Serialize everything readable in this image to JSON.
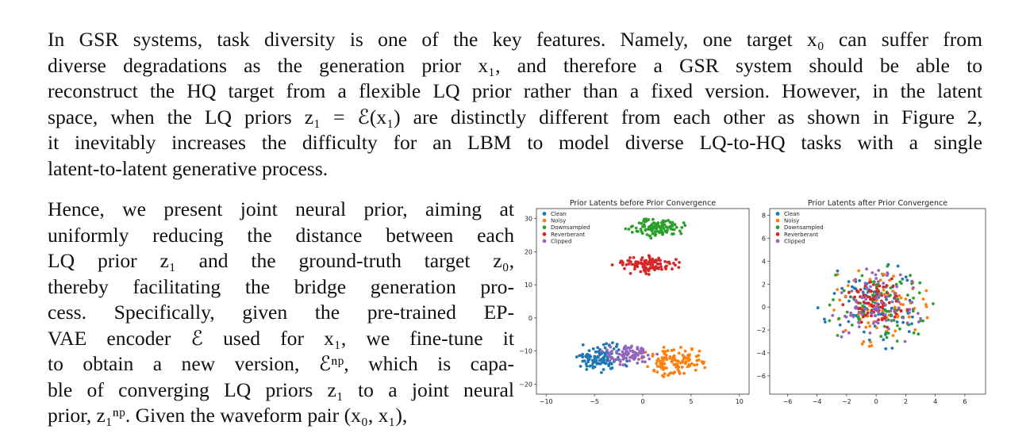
{
  "paragraph1": {
    "lines": [
      "In GSR systems, task diversity is one of the key features. Namely, one target x₀ can suffer from",
      "diverse degradations as the generation prior x₁, and therefore a GSR system should be able to",
      "reconstruct the HQ target from a flexible LQ prior rather than a fixed version. However, in the latent",
      "space, when the LQ priors z₁ = ℰ(x₁) are distinctly different from each other as shown in Figure 2,",
      "it inevitably increases the difficulty for an LBM to model diverse LQ-to-HQ tasks with a single",
      "latent-to-latent generative process."
    ]
  },
  "paragraph2": {
    "lines": [
      "Hence, we present joint neural prior, aiming at",
      "uniformly reducing the distance between each",
      "LQ prior z₁ and the ground-truth target z₀,",
      "thereby facilitating the bridge generation pro-",
      "cess. Specifically, given the pre-trained EP-",
      "VAE encoder ℰ used for x₁, we fine-tune it",
      "to obtain a new version, ℰⁿᵖ, which is capa-",
      "ble of converging LQ priors z₁ to a joint neural",
      "prior, z₁ⁿᵖ. Given the waveform pair (x₀, x₁),"
    ]
  },
  "chart_data": [
    {
      "type": "scatter",
      "title": "Prior Latents before Prior Convergence",
      "xlim": [
        -11,
        11
      ],
      "ylim": [
        -23,
        33
      ],
      "xticks": [
        -10,
        -5,
        0,
        5,
        10
      ],
      "yticks": [
        -20,
        -10,
        0,
        10,
        20,
        30
      ],
      "legend_position": "top-left",
      "series": [
        {
          "name": "Clean",
          "color": "#1f77b4",
          "center": [
            -4.5,
            -12
          ],
          "spread": [
            1.6,
            2.2
          ],
          "count": 110
        },
        {
          "name": "Noisy",
          "color": "#ff7f0e",
          "center": [
            3.5,
            -13
          ],
          "spread": [
            1.6,
            2.3
          ],
          "count": 110
        },
        {
          "name": "Downsampled",
          "color": "#2ca02c",
          "center": [
            1.5,
            27
          ],
          "spread": [
            1.5,
            1.4
          ],
          "count": 110
        },
        {
          "name": "Reverberant",
          "color": "#d62728",
          "center": [
            0.5,
            16
          ],
          "spread": [
            1.6,
            1.4
          ],
          "count": 110
        },
        {
          "name": "Clipped",
          "color": "#9467bd",
          "center": [
            -1.5,
            -11
          ],
          "spread": [
            1.3,
            1.6
          ],
          "count": 90
        }
      ]
    },
    {
      "type": "scatter",
      "title": "Prior Latents after Prior Convergence",
      "xlim": [
        -7.2,
        7.4
      ],
      "ylim": [
        -7.6,
        8.6
      ],
      "xticks": [
        -6,
        -4,
        -2,
        0,
        2,
        4,
        6
      ],
      "yticks": [
        -6,
        -4,
        -2,
        0,
        2,
        4,
        6,
        8
      ],
      "legend_position": "top-left",
      "series": [
        {
          "name": "Clean",
          "color": "#1f77b4",
          "center": [
            0,
            0.2
          ],
          "spread": [
            1.7,
            1.7
          ],
          "count": 80
        },
        {
          "name": "Noisy",
          "color": "#ff7f0e",
          "center": [
            0,
            0.2
          ],
          "spread": [
            1.7,
            1.7
          ],
          "count": 80
        },
        {
          "name": "Downsampled",
          "color": "#2ca02c",
          "center": [
            0.2,
            0.2
          ],
          "spread": [
            1.7,
            1.7
          ],
          "count": 80
        },
        {
          "name": "Reverberant",
          "color": "#d62728",
          "center": [
            0,
            0.4
          ],
          "spread": [
            1.0,
            1.0
          ],
          "count": 80
        },
        {
          "name": "Clipped",
          "color": "#9467bd",
          "center": [
            0,
            0.2
          ],
          "spread": [
            1.7,
            1.7
          ],
          "count": 80
        }
      ]
    }
  ]
}
